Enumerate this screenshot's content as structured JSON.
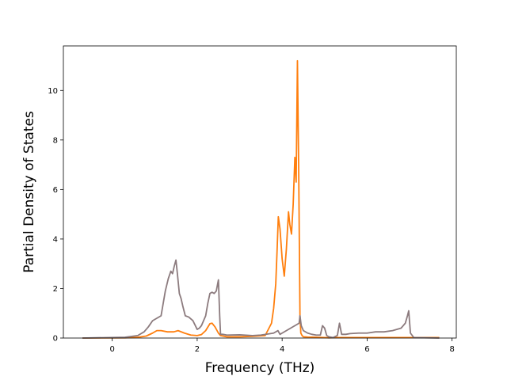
{
  "chart_data": {
    "type": "line",
    "title": "",
    "xlabel": "Frequency (THz)",
    "ylabel": "Partial Density of States",
    "xlim": [
      -1.15,
      8.1
    ],
    "ylim": [
      0,
      11.8
    ],
    "xticks": [
      0,
      2,
      4,
      6,
      8
    ],
    "yticks": [
      0,
      2,
      4,
      6,
      8,
      10
    ],
    "grid": false,
    "legend": "none",
    "series": [
      {
        "color": "#ff7f0e",
        "x": [
          -0.7,
          0.3,
          0.6,
          0.8,
          0.95,
          1.05,
          1.15,
          1.3,
          1.45,
          1.55,
          1.7,
          1.85,
          2.0,
          2.1,
          2.2,
          2.3,
          2.35,
          2.42,
          2.5,
          2.55,
          2.7,
          3.0,
          3.3,
          3.6,
          3.75,
          3.8,
          3.85,
          3.88,
          3.91,
          3.95,
          4.0,
          4.05,
          4.1,
          4.15,
          4.18,
          4.22,
          4.26,
          4.3,
          4.33,
          4.36,
          4.39,
          4.42,
          4.44,
          4.47,
          4.5,
          4.6,
          4.8,
          5.0,
          5.1,
          5.3,
          5.6,
          6.0,
          6.5,
          7.0,
          7.7
        ],
        "y": [
          0,
          0.01,
          0.03,
          0.08,
          0.2,
          0.3,
          0.3,
          0.25,
          0.25,
          0.3,
          0.2,
          0.12,
          0.1,
          0.14,
          0.3,
          0.58,
          0.6,
          0.45,
          0.2,
          0.1,
          0.05,
          0.05,
          0.07,
          0.1,
          0.6,
          1.2,
          2.2,
          3.5,
          4.9,
          4.4,
          3.2,
          2.5,
          3.6,
          5.1,
          4.6,
          4.2,
          5.4,
          7.3,
          6.3,
          11.2,
          6.8,
          0.9,
          0.2,
          0.1,
          0.05,
          0.04,
          0.03,
          0.02,
          0.01,
          0.02,
          0.02,
          0.02,
          0.02,
          0.02,
          0.02
        ]
      },
      {
        "color": "#8c7b7e",
        "x": [
          -0.7,
          0.3,
          0.6,
          0.75,
          0.85,
          0.95,
          1.05,
          1.15,
          1.25,
          1.32,
          1.38,
          1.42,
          1.46,
          1.5,
          1.54,
          1.58,
          1.62,
          1.66,
          1.72,
          1.8,
          1.9,
          2.0,
          2.05,
          2.1,
          2.2,
          2.25,
          2.3,
          2.35,
          2.4,
          2.45,
          2.5,
          2.53,
          2.55,
          2.6,
          2.7,
          3.0,
          3.3,
          3.5,
          3.8,
          3.9,
          3.95,
          4.0,
          4.1,
          4.2,
          4.3,
          4.4,
          4.42,
          4.45,
          4.5,
          4.6,
          4.7,
          4.8,
          4.9,
          4.95,
          5.0,
          5.05,
          5.1,
          5.2,
          5.3,
          5.35,
          5.4,
          5.45,
          5.5,
          5.6,
          5.8,
          6.0,
          6.2,
          6.4,
          6.6,
          6.8,
          6.9,
          6.95,
          6.98,
          7.02,
          7.1,
          7.7
        ],
        "y": [
          0,
          0.03,
          0.1,
          0.25,
          0.45,
          0.7,
          0.8,
          0.9,
          1.9,
          2.4,
          2.7,
          2.6,
          2.9,
          3.15,
          2.5,
          1.8,
          1.6,
          1.3,
          0.9,
          0.85,
          0.7,
          0.35,
          0.4,
          0.5,
          0.9,
          1.4,
          1.8,
          1.85,
          1.8,
          1.9,
          2.35,
          0.9,
          0.15,
          0.15,
          0.12,
          0.13,
          0.1,
          0.12,
          0.2,
          0.3,
          0.15,
          0.2,
          0.3,
          0.4,
          0.5,
          0.6,
          0.9,
          0.5,
          0.3,
          0.2,
          0.15,
          0.12,
          0.12,
          0.5,
          0.4,
          0.1,
          0.05,
          0.02,
          0.1,
          0.6,
          0.15,
          0.15,
          0.15,
          0.18,
          0.2,
          0.2,
          0.25,
          0.25,
          0.3,
          0.4,
          0.6,
          0.9,
          1.1,
          0.2,
          0.02,
          0.0
        ]
      }
    ]
  }
}
